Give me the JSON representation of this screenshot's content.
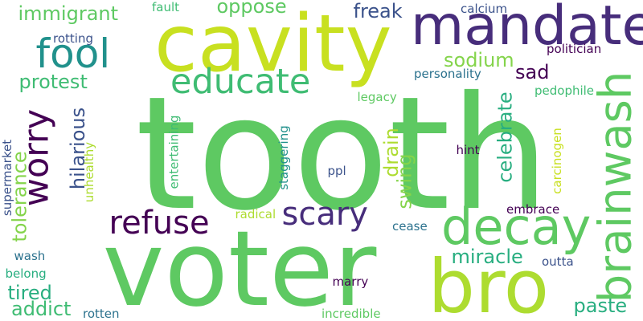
{
  "words": [
    {
      "id": "tooth",
      "text": "tooth",
      "color": "#5ec962"
    },
    {
      "id": "voter",
      "text": "voter",
      "color": "#5ec962"
    },
    {
      "id": "cavity",
      "text": "cavity",
      "color": "#c8e020"
    },
    {
      "id": "mandate",
      "text": "mandate",
      "color": "#472d7b"
    },
    {
      "id": "bro",
      "text": "bro",
      "color": "#addc30"
    },
    {
      "id": "decay",
      "text": "decay",
      "color": "#5ec962"
    },
    {
      "id": "brainwash",
      "text": "brainwash",
      "color": "#5ec962"
    },
    {
      "id": "educate",
      "text": "educate",
      "color": "#3fbc73"
    },
    {
      "id": "fool",
      "text": "fool",
      "color": "#21918c"
    },
    {
      "id": "worry",
      "text": "worry",
      "color": "#440154"
    },
    {
      "id": "scary",
      "text": "scary",
      "color": "#472d7b"
    },
    {
      "id": "refuse",
      "text": "refuse",
      "color": "#440154"
    },
    {
      "id": "immigrant",
      "text": "immigrant",
      "color": "#5ec962"
    },
    {
      "id": "oppose",
      "text": "oppose",
      "color": "#5ec962"
    },
    {
      "id": "freak",
      "text": "freak",
      "color": "#3b528b"
    },
    {
      "id": "sodium",
      "text": "sodium",
      "color": "#84d44b"
    },
    {
      "id": "sad",
      "text": "sad",
      "color": "#440154"
    },
    {
      "id": "protest",
      "text": "protest",
      "color": "#3fbc73"
    },
    {
      "id": "miracle",
      "text": "miracle",
      "color": "#28ae80"
    },
    {
      "id": "tolerance",
      "text": "tolerance",
      "color": "#84d44b"
    },
    {
      "id": "hilarious",
      "text": "hilarious",
      "color": "#3b528b"
    },
    {
      "id": "celebrate",
      "text": "celebrate",
      "color": "#28ae80"
    },
    {
      "id": "swing",
      "text": "swing",
      "color": "#84d44b"
    },
    {
      "id": "drain",
      "text": "drain",
      "color": "#addc30"
    },
    {
      "id": "tired",
      "text": "tired",
      "color": "#28ae80"
    },
    {
      "id": "addict",
      "text": "addict",
      "color": "#3fbc73"
    },
    {
      "id": "paste",
      "text": "paste",
      "color": "#28ae80"
    },
    {
      "id": "calcium",
      "text": "calcium",
      "color": "#3b528b"
    },
    {
      "id": "fault",
      "text": "fault",
      "color": "#3fbc73"
    },
    {
      "id": "rotting",
      "text": "rotting",
      "color": "#3b528b"
    },
    {
      "id": "politician",
      "text": "politician",
      "color": "#440154"
    },
    {
      "id": "personality",
      "text": "personality",
      "color": "#2c728e"
    },
    {
      "id": "legacy",
      "text": "legacy",
      "color": "#5ec962"
    },
    {
      "id": "pedophile",
      "text": "pedophile",
      "color": "#3fbc73"
    },
    {
      "id": "hint",
      "text": "hint",
      "color": "#440154"
    },
    {
      "id": "ppl",
      "text": "ppl",
      "color": "#3b528b"
    },
    {
      "id": "embrace",
      "text": "embrace",
      "color": "#440154"
    },
    {
      "id": "radical",
      "text": "radical",
      "color": "#addc30"
    },
    {
      "id": "cease",
      "text": "cease",
      "color": "#2c728e"
    },
    {
      "id": "outta",
      "text": "outta",
      "color": "#3b528b"
    },
    {
      "id": "marry",
      "text": "marry",
      "color": "#440154"
    },
    {
      "id": "incredible",
      "text": "incredible",
      "color": "#5ec962"
    },
    {
      "id": "rotten",
      "text": "rotten",
      "color": "#2c728e"
    },
    {
      "id": "wash",
      "text": "wash",
      "color": "#2c728e"
    },
    {
      "id": "belong",
      "text": "belong",
      "color": "#28ae80"
    },
    {
      "id": "supermarket",
      "text": "supermarket",
      "color": "#3b528b"
    },
    {
      "id": "unhealthy",
      "text": "unhealthy",
      "color": "#addc30"
    },
    {
      "id": "entertaining",
      "text": "entertaining",
      "color": "#3fbc73"
    },
    {
      "id": "staggering",
      "text": "staggering",
      "color": "#21918c"
    },
    {
      "id": "carcinogen",
      "text": "carcinogen",
      "color": "#c8e020"
    }
  ]
}
